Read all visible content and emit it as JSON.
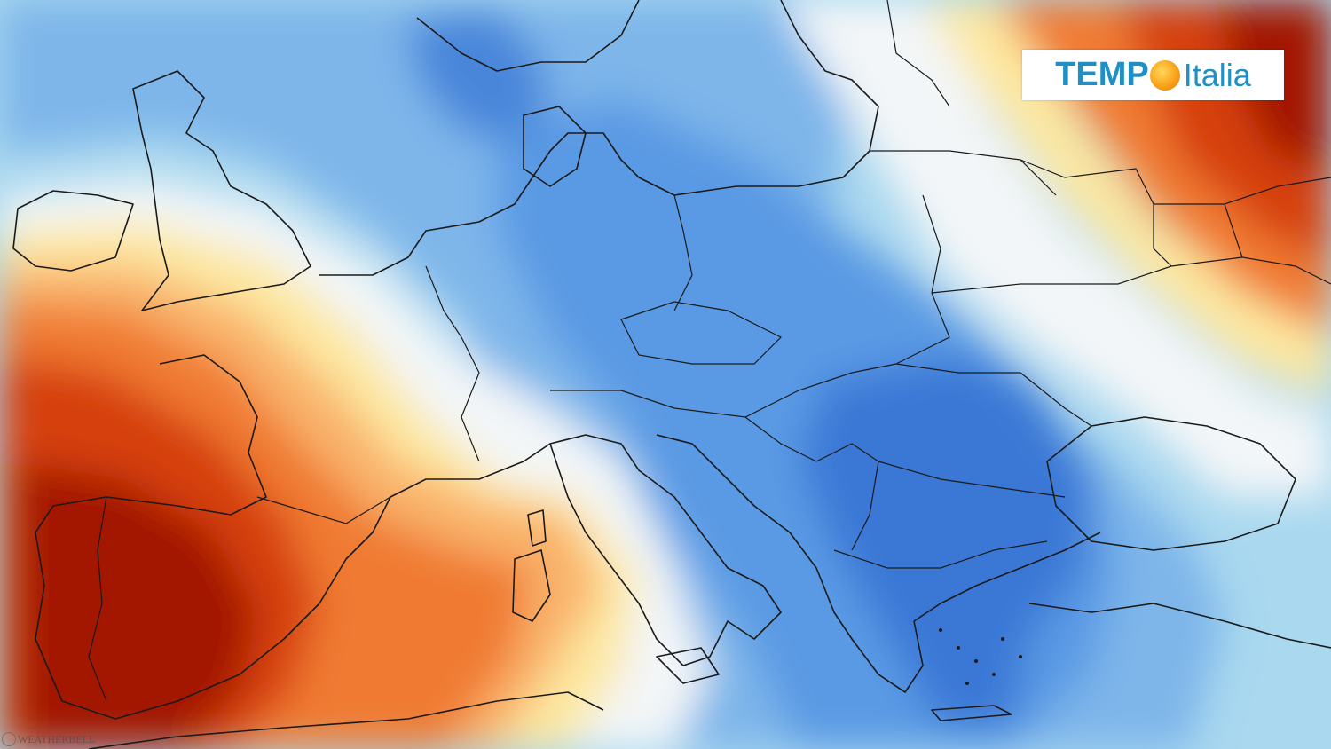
{
  "logo": {
    "part1": "TEMP",
    "part2": "Italia",
    "sun_icon": "sun-icon",
    "color": "#1f8fc4"
  },
  "credit": {
    "text": "WEATHERBELL"
  },
  "palette": {
    "dark_red": "#a31705",
    "red": "#d6400f",
    "orange": "#f07a32",
    "light_orange": "#f9b26a",
    "yellow": "#fde8a0",
    "white": "#f3f6f8",
    "light_blue": "#a9d8ef",
    "blue": "#7eb6ea",
    "mid_blue": "#5a9ae4",
    "deep_blue": "#3a78d6",
    "coastline": "#1a1a1a"
  }
}
